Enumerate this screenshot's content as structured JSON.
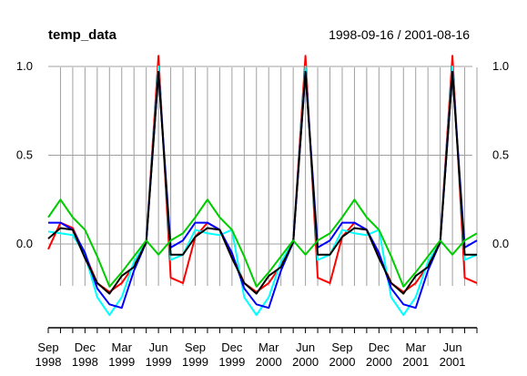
{
  "chart_data": {
    "type": "line",
    "title": "temp_data",
    "subtitle": "1998-09-16 / 2001-08-16",
    "xlabel": "",
    "ylabel": "",
    "ylim": [
      -0.5,
      1.05
    ],
    "y_ticks": [
      0.0,
      0.5,
      1.0
    ],
    "y_tick_labels": [
      "0.0",
      "0.5",
      "1.0"
    ],
    "x": [
      "1998-09",
      "1998-10",
      "1998-11",
      "1998-12",
      "1999-01",
      "1999-02",
      "1999-03",
      "1999-04",
      "1999-05",
      "1999-06",
      "1999-07",
      "1999-08",
      "1999-09",
      "1999-10",
      "1999-11",
      "1999-12",
      "2000-01",
      "2000-02",
      "2000-03",
      "2000-04",
      "2000-05",
      "2000-06",
      "2000-07",
      "2000-08",
      "2000-09",
      "2000-10",
      "2000-11",
      "2000-12",
      "2001-01",
      "2001-02",
      "2001-03",
      "2001-04",
      "2001-05",
      "2001-06",
      "2001-07",
      "2001-08"
    ],
    "x_ticks": [
      "1998-09",
      "1998-12",
      "1999-03",
      "1999-06",
      "1999-09",
      "1999-12",
      "2000-03",
      "2000-06",
      "2000-09",
      "2000-12",
      "2001-03",
      "2001-06"
    ],
    "x_tick_labels": [
      [
        "Sep",
        "1998"
      ],
      [
        "Dec",
        "1998"
      ],
      [
        "Mar",
        "1999"
      ],
      [
        "Jun",
        "1999"
      ],
      [
        "Sep",
        "1999"
      ],
      [
        "Dec",
        "1999"
      ],
      [
        "Mar",
        "2000"
      ],
      [
        "Jun",
        "2000"
      ],
      [
        "Sep",
        "2000"
      ],
      [
        "Dec",
        "2000"
      ],
      [
        "Mar",
        "2001"
      ],
      [
        "Jun",
        "2001"
      ]
    ],
    "vertical_grid": true,
    "horizontal_grid": true,
    "right_axis": true,
    "series": [
      {
        "color": "#ff0000",
        "values": [
          -0.03,
          0.12,
          0.09,
          -0.06,
          -0.22,
          -0.27,
          -0.22,
          -0.12,
          0.01,
          1.06,
          -0.19,
          -0.22,
          0.04,
          0.12,
          0.08,
          -0.06,
          -0.22,
          -0.27,
          -0.22,
          -0.12,
          0.01,
          1.06,
          -0.19,
          -0.22,
          0.04,
          0.12,
          0.08,
          -0.06,
          -0.22,
          -0.27,
          -0.22,
          -0.12,
          0.01,
          1.06,
          -0.19,
          -0.22
        ]
      },
      {
        "color": "#00ffff",
        "values": [
          0.07,
          0.06,
          0.05,
          -0.06,
          -0.3,
          -0.4,
          -0.3,
          -0.1,
          0.01,
          1.0,
          -0.09,
          -0.06,
          0.08,
          0.06,
          0.05,
          0.08,
          -0.3,
          -0.4,
          -0.3,
          -0.1,
          0.01,
          1.0,
          -0.09,
          -0.06,
          0.08,
          0.06,
          0.05,
          0.08,
          -0.3,
          -0.4,
          -0.3,
          -0.1,
          0.01,
          1.0,
          -0.09,
          -0.06
        ]
      },
      {
        "color": "#0000ff",
        "values": [
          0.12,
          0.12,
          0.08,
          -0.05,
          -0.25,
          -0.34,
          -0.36,
          -0.15,
          0.01,
          0.97,
          -0.02,
          0.02,
          0.12,
          0.12,
          0.08,
          -0.05,
          -0.25,
          -0.34,
          -0.36,
          -0.15,
          0.01,
          0.97,
          -0.02,
          0.02,
          0.12,
          0.12,
          0.08,
          -0.05,
          -0.25,
          -0.34,
          -0.36,
          -0.15,
          0.01,
          0.97,
          -0.02,
          0.02
        ]
      },
      {
        "color": "#000000",
        "values": [
          0.03,
          0.09,
          0.08,
          -0.08,
          -0.22,
          -0.28,
          -0.18,
          -0.13,
          0.01,
          0.97,
          -0.06,
          -0.06,
          0.04,
          0.09,
          0.08,
          -0.08,
          -0.22,
          -0.28,
          -0.18,
          -0.13,
          0.01,
          0.97,
          -0.06,
          -0.06,
          0.04,
          0.09,
          0.08,
          -0.08,
          -0.22,
          -0.28,
          -0.18,
          -0.13,
          0.01,
          0.97,
          -0.06,
          -0.06
        ]
      },
      {
        "color": "#00cc00",
        "values": [
          0.15,
          0.25,
          0.15,
          0.08,
          -0.07,
          -0.24,
          -0.16,
          -0.07,
          0.02,
          -0.06,
          0.02,
          0.06,
          0.15,
          0.25,
          0.15,
          0.08,
          -0.07,
          -0.24,
          -0.16,
          -0.07,
          0.02,
          -0.06,
          0.02,
          0.06,
          0.15,
          0.25,
          0.15,
          0.08,
          -0.07,
          -0.24,
          -0.16,
          -0.07,
          0.02,
          -0.06,
          0.02,
          0.06
        ]
      }
    ]
  }
}
